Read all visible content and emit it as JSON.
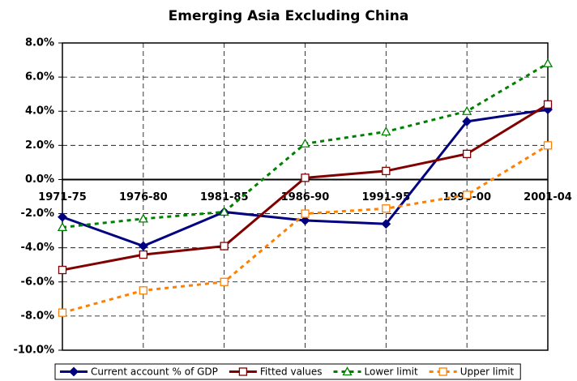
{
  "chart_data": {
    "type": "line",
    "title": "Emerging Asia Excluding China",
    "categories": [
      "1971-75",
      "1976-80",
      "1981-85",
      "1986-90",
      "1991-95",
      "1996-00",
      "2001-04"
    ],
    "series": [
      {
        "name": "Current account % of GDP",
        "color": "#000080",
        "marker": "diamond",
        "line_style": "solid",
        "values": [
          -2.2,
          -3.9,
          -1.9,
          -2.4,
          -2.6,
          3.4,
          4.1
        ]
      },
      {
        "name": "Fitted values",
        "color": "#800000",
        "marker": "square",
        "line_style": "solid",
        "values": [
          -5.3,
          -4.4,
          -3.9,
          0.1,
          0.5,
          1.5,
          4.4
        ]
      },
      {
        "name": "Lower limit",
        "color": "#008000",
        "marker": "triangle",
        "line_style": "dashed",
        "values": [
          -2.8,
          -2.3,
          -1.9,
          2.1,
          2.8,
          4.0,
          6.8
        ]
      },
      {
        "name": "Upper limit",
        "color": "#ff8000",
        "marker": "square",
        "line_style": "dashed",
        "values": [
          -7.8,
          -6.5,
          -6.0,
          -2.0,
          -1.7,
          -0.9,
          2.0
        ]
      }
    ],
    "ylim": [
      -10,
      8
    ],
    "yticks": [
      {
        "value": -10,
        "label": "-10.0%"
      },
      {
        "value": -8,
        "label": "-8.0%"
      },
      {
        "value": -6,
        "label": "-6.0%"
      },
      {
        "value": -4,
        "label": "-4.0%"
      },
      {
        "value": -2,
        "label": "-2.0%"
      },
      {
        "value": 0,
        "label": "0.0%"
      },
      {
        "value": 2,
        "label": "2.0%"
      },
      {
        "value": 4,
        "label": "4.0%"
      },
      {
        "value": 6,
        "label": "6.0%"
      },
      {
        "value": 8,
        "label": "8.0%"
      }
    ],
    "grid": true,
    "legend": "bottom"
  }
}
